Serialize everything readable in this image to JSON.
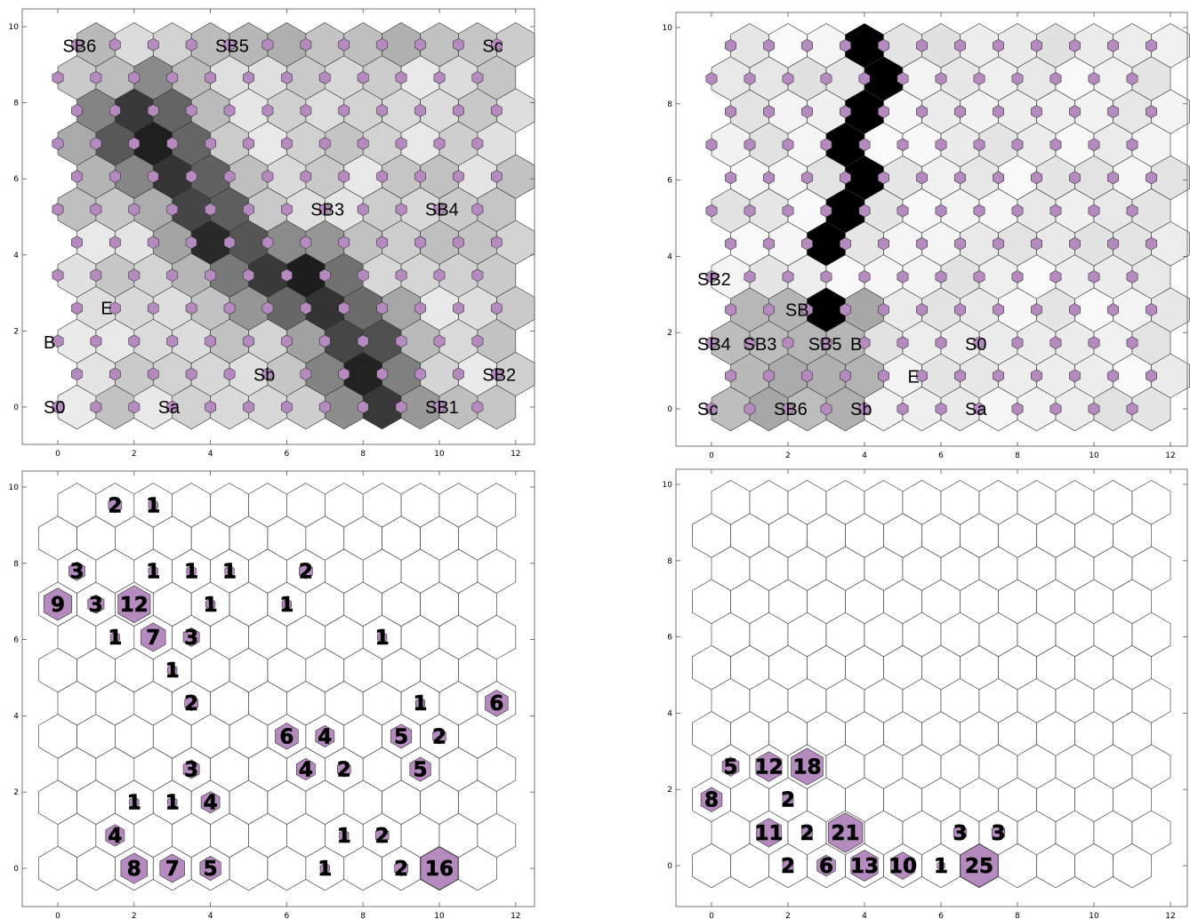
{
  "accent_color": "#b58bbf",
  "chart_data": [
    {
      "type": "heatmap",
      "name_hint": "som-umatrix-1",
      "xticks": [
        0,
        2,
        4,
        6,
        8,
        10,
        12
      ],
      "yticks": [
        0,
        2,
        4,
        6,
        8,
        10
      ],
      "xlim": [
        -1,
        12.5
      ],
      "ylim": [
        -1,
        10.2
      ],
      "grid_cols": 12,
      "grid_rows": 12,
      "grid_x0": 0.5,
      "grid_dx": 1,
      "grid_dy": 0.866,
      "labels": [
        {
          "text": "SB6",
          "x": 0.5,
          "y": 9.5
        },
        {
          "text": "SB5",
          "x": 4.5,
          "y": 9.5
        },
        {
          "text": "Sc",
          "x": 11.5,
          "y": 9.5
        },
        {
          "text": "SB3",
          "x": 7,
          "y": 5.2
        },
        {
          "text": "SB4",
          "x": 10,
          "y": 5.2
        },
        {
          "text": "E",
          "x": 1.5,
          "y": 2.6
        },
        {
          "text": "B",
          "x": 0,
          "y": 1.7
        },
        {
          "text": "Sb",
          "x": 5.5,
          "y": 0.85
        },
        {
          "text": "SB2",
          "x": 11.5,
          "y": 0.85
        },
        {
          "text": "S0",
          "x": 0,
          "y": 0
        },
        {
          "text": "Sa",
          "x": 3,
          "y": 0
        },
        {
          "text": "SB1",
          "x": 10,
          "y": 0
        }
      ]
    },
    {
      "type": "heatmap",
      "name_hint": "som-umatrix-2",
      "xticks": [
        0,
        2,
        4,
        6,
        8,
        10,
        12
      ],
      "yticks": [
        0,
        2,
        4,
        6,
        8,
        10
      ],
      "xlim": [
        -1,
        12.5
      ],
      "ylim": [
        -1,
        10.2
      ],
      "grid_cols": 12,
      "grid_rows": 12,
      "grid_x0": 0.5,
      "grid_dx": 1,
      "grid_dy": 0.866,
      "labels": [
        {
          "text": "SB2",
          "x": 0,
          "y": 3.4
        },
        {
          "text": "SB1",
          "x": 2.3,
          "y": 2.6
        },
        {
          "text": "SB4",
          "x": 0,
          "y": 1.7
        },
        {
          "text": "SB3",
          "x": 1.2,
          "y": 1.7
        },
        {
          "text": "SB5",
          "x": 2.9,
          "y": 1.7
        },
        {
          "text": "B",
          "x": 4,
          "y": 1.7
        },
        {
          "text": "S0",
          "x": 7,
          "y": 1.7
        },
        {
          "text": "E",
          "x": 5.5,
          "y": 0.85
        },
        {
          "text": "Sc",
          "x": 0,
          "y": 0
        },
        {
          "text": "SB6",
          "x": 2,
          "y": 0
        },
        {
          "text": "Sb",
          "x": 4,
          "y": 0
        },
        {
          "text": "Sa",
          "x": 7,
          "y": 0
        }
      ]
    },
    {
      "type": "heatmap",
      "name_hint": "som-hits-1",
      "xticks": [
        0,
        2,
        4,
        6,
        8,
        10,
        12
      ],
      "yticks": [
        0,
        2,
        4,
        6,
        8,
        10
      ],
      "xlim": [
        -1,
        12.5
      ],
      "ylim": [
        -1,
        10.2
      ],
      "grid_cols": 12,
      "grid_rows": 12,
      "grid_x0": 0,
      "grid_dx": 1,
      "grid_dy": 0.866,
      "max_hits": 16,
      "hits": [
        {
          "c": 1.5,
          "r": 11,
          "v": "2"
        },
        {
          "c": 2.5,
          "r": 11,
          "v": "1"
        },
        {
          "c": 0.5,
          "r": 9,
          "v": "3"
        },
        {
          "c": 2.5,
          "r": 9,
          "v": "1"
        },
        {
          "c": 3.5,
          "r": 9,
          "v": "1"
        },
        {
          "c": 4.5,
          "r": 9,
          "v": "1"
        },
        {
          "c": 6.5,
          "r": 9,
          "v": "2"
        },
        {
          "c": 0,
          "r": 8,
          "v": "9"
        },
        {
          "c": 1,
          "r": 8,
          "v": "3"
        },
        {
          "c": 2,
          "r": 8,
          "v": "12"
        },
        {
          "c": 4,
          "r": 8,
          "v": "1"
        },
        {
          "c": 6,
          "r": 8,
          "v": "1"
        },
        {
          "c": 1.5,
          "r": 7,
          "v": "1"
        },
        {
          "c": 2.5,
          "r": 7,
          "v": "7"
        },
        {
          "c": 3.5,
          "r": 7,
          "v": "3"
        },
        {
          "c": 8.5,
          "r": 7,
          "v": "1"
        },
        {
          "c": 3,
          "r": 6,
          "v": "1"
        },
        {
          "c": 3.5,
          "r": 5,
          "v": "2"
        },
        {
          "c": 9.5,
          "r": 5,
          "v": "1"
        },
        {
          "c": 11.5,
          "r": 5,
          "v": "6"
        },
        {
          "c": 6,
          "r": 4,
          "v": "6"
        },
        {
          "c": 7,
          "r": 4,
          "v": "4"
        },
        {
          "c": 9,
          "r": 4,
          "v": "5"
        },
        {
          "c": 10,
          "r": 4,
          "v": "2"
        },
        {
          "c": 3.5,
          "r": 3,
          "v": "3"
        },
        {
          "c": 6.5,
          "r": 3,
          "v": "4"
        },
        {
          "c": 7.5,
          "r": 3,
          "v": "2"
        },
        {
          "c": 9.5,
          "r": 3,
          "v": "5"
        },
        {
          "c": 2,
          "r": 2,
          "v": "1"
        },
        {
          "c": 3,
          "r": 2,
          "v": "1"
        },
        {
          "c": 4,
          "r": 2,
          "v": "4"
        },
        {
          "c": 1.5,
          "r": 1,
          "v": "4"
        },
        {
          "c": 7.5,
          "r": 1,
          "v": "1"
        },
        {
          "c": 8.5,
          "r": 1,
          "v": "2"
        },
        {
          "c": 2,
          "r": 0,
          "v": "8"
        },
        {
          "c": 3,
          "r": 0,
          "v": "7"
        },
        {
          "c": 4,
          "r": 0,
          "v": "5"
        },
        {
          "c": 7,
          "r": 0,
          "v": "1"
        },
        {
          "c": 9,
          "r": 0,
          "v": "2"
        },
        {
          "c": 10,
          "r": 0,
          "v": "16"
        }
      ]
    },
    {
      "type": "heatmap",
      "name_hint": "som-hits-2",
      "xticks": [
        0,
        2,
        4,
        6,
        8,
        10,
        12
      ],
      "yticks": [
        0,
        2,
        4,
        6,
        8,
        10
      ],
      "xlim": [
        -1,
        12.5
      ],
      "ylim": [
        -1,
        10.2
      ],
      "grid_cols": 12,
      "grid_rows": 12,
      "grid_x0": 0,
      "grid_dx": 1,
      "grid_dy": 0.866,
      "max_hits": 25,
      "hits": [
        {
          "c": 0.5,
          "r": 3,
          "v": "5"
        },
        {
          "c": 1.5,
          "r": 3,
          "v": "12"
        },
        {
          "c": 2.5,
          "r": 3,
          "v": "18"
        },
        {
          "c": 0,
          "r": 2,
          "v": "8"
        },
        {
          "c": 2,
          "r": 2,
          "v": "2"
        },
        {
          "c": 1.5,
          "r": 1,
          "v": "11"
        },
        {
          "c": 2.5,
          "r": 1,
          "v": "2"
        },
        {
          "c": 3.5,
          "r": 1,
          "v": "21"
        },
        {
          "c": 6.5,
          "r": 1,
          "v": "3"
        },
        {
          "c": 7.5,
          "r": 1,
          "v": "3"
        },
        {
          "c": 2,
          "r": 0,
          "v": "2"
        },
        {
          "c": 3,
          "r": 0,
          "v": "6"
        },
        {
          "c": 4,
          "r": 0,
          "v": "13"
        },
        {
          "c": 5,
          "r": 0,
          "v": "10"
        },
        {
          "c": 6,
          "r": 0,
          "v": "1"
        },
        {
          "c": 7,
          "r": 0,
          "v": "25"
        }
      ]
    }
  ]
}
